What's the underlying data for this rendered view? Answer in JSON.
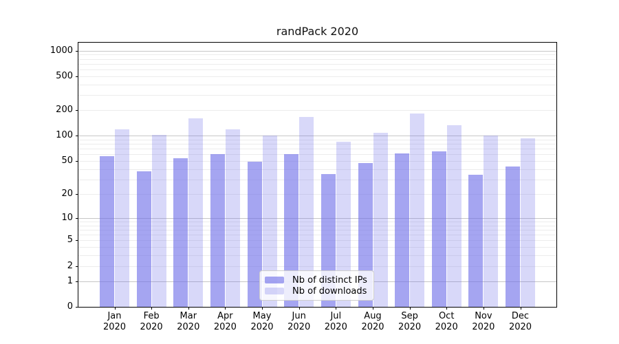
{
  "title": "randPack 2020",
  "chart_data": {
    "type": "bar",
    "yscale": "log1p",
    "ylim": [
      0,
      1240
    ],
    "yticks": [
      0,
      1,
      2,
      5,
      10,
      20,
      50,
      100,
      200,
      500,
      1000
    ],
    "grid": {
      "major": [
        1,
        10,
        100,
        1000
      ],
      "minor": [
        2,
        3,
        4,
        5,
        6,
        7,
        8,
        9,
        20,
        30,
        40,
        50,
        60,
        70,
        80,
        90,
        200,
        300,
        400,
        500,
        600,
        700,
        800,
        900
      ],
      "major_color": "#c6c6c6",
      "minor_color": "#ececec"
    },
    "categories": [
      {
        "month": "Jan",
        "year": "2020"
      },
      {
        "month": "Feb",
        "year": "2020"
      },
      {
        "month": "Mar",
        "year": "2020"
      },
      {
        "month": "Apr",
        "year": "2020"
      },
      {
        "month": "May",
        "year": "2020"
      },
      {
        "month": "Jun",
        "year": "2020"
      },
      {
        "month": "Jul",
        "year": "2020"
      },
      {
        "month": "Aug",
        "year": "2020"
      },
      {
        "month": "Sep",
        "year": "2020"
      },
      {
        "month": "Oct",
        "year": "2020"
      },
      {
        "month": "Nov",
        "year": "2020"
      },
      {
        "month": "Dec",
        "year": "2020"
      }
    ],
    "series": [
      {
        "key": "ips",
        "name": "Nb of distinct IPs",
        "color": "#6e6ee8",
        "alpha": 0.62,
        "values": [
          57,
          38,
          54,
          60,
          49,
          60,
          35,
          47,
          62,
          65,
          34,
          43
        ]
      },
      {
        "key": "downloads",
        "name": "Nb of downloads",
        "color": "#6e6ee8",
        "alpha": 0.27,
        "values": [
          118,
          102,
          160,
          120,
          100,
          168,
          85,
          108,
          182,
          132,
          100,
          94
        ]
      }
    ],
    "legend_position": "lower center"
  },
  "colors": {
    "background": "#ffffff",
    "axis": "#000000",
    "text": "#000000"
  }
}
